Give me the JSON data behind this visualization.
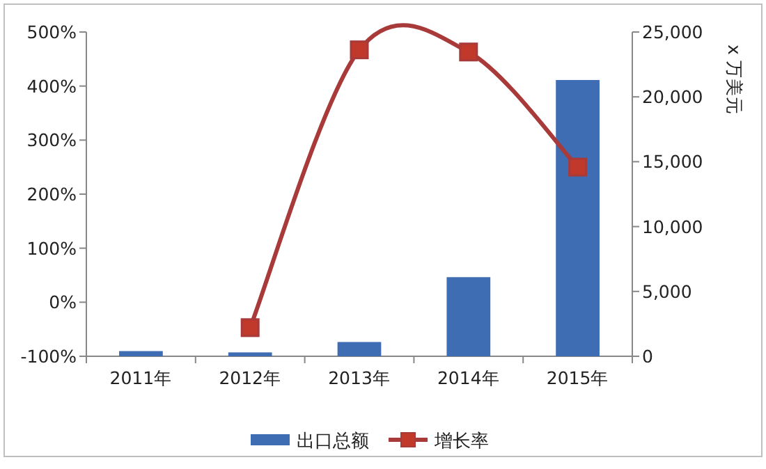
{
  "chart_data": {
    "type": "bar",
    "categories": [
      "2011年",
      "2012年",
      "2013年",
      "2014年",
      "2015年"
    ],
    "series": [
      {
        "name": "出口总额",
        "axis": "y2",
        "color": "#3e6db3",
        "values": [
          400,
          300,
          1100,
          6100,
          21300
        ]
      },
      {
        "name": "增长率",
        "type": "line",
        "color": "#a83a3a",
        "values": [
          null,
          -47,
          467,
          463,
          250
        ]
      }
    ],
    "y2label": "x 万美元",
    "ylim": [
      -100,
      500
    ],
    "yticks": [
      {
        "value": -100,
        "label": "-100%"
      },
      {
        "value": 0,
        "label": "0%"
      },
      {
        "value": 100,
        "label": "100%"
      },
      {
        "value": 200,
        "label": "200%"
      },
      {
        "value": 300,
        "label": "300%"
      },
      {
        "value": 400,
        "label": "400%"
      },
      {
        "value": 500,
        "label": "500%"
      }
    ],
    "y2lim": [
      0,
      25000
    ],
    "y2ticks": [
      0,
      {
        "value": 5000,
        "label": "5,000"
      },
      {
        "value": 10000,
        "label": "10,000"
      },
      {
        "value": 15000,
        "label": "15,000"
      },
      {
        "value": 20000,
        "label": "20,000"
      },
      {
        "value": 25000,
        "label": "25,000"
      }
    ],
    "marker": "square",
    "line_style": "solid",
    "legend": "bottom",
    "grid": false
  }
}
